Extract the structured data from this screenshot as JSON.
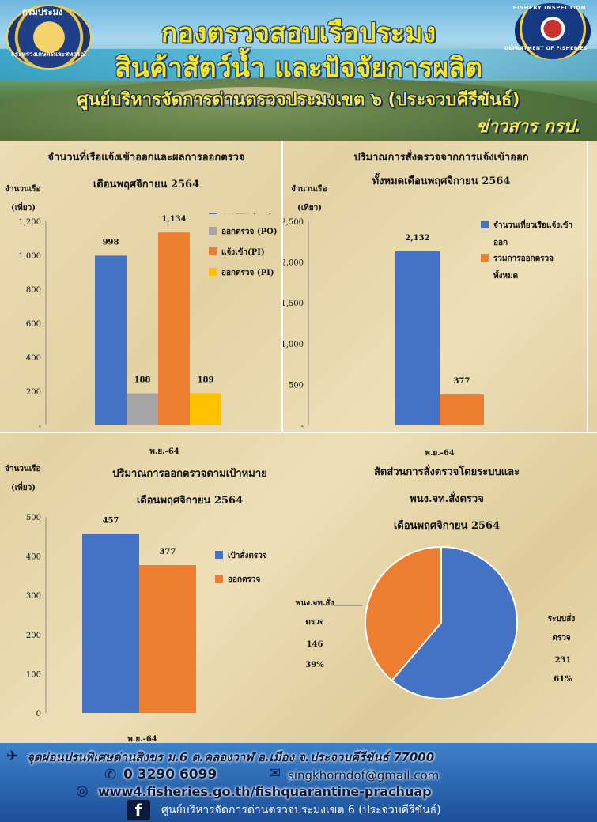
{
  "header": {
    "title_line1": "กองตรวจสอบเรือประมง",
    "title_line2": "สินค้าสัตว์น้ำ และปัจจัยการผลิต",
    "title_line3": "ศูนย์บริหารจัดการด่านตรวจประมงเขต ๖ (ประจวบคีรีขันธ์)",
    "tag": "ข่าวสาร กรป.",
    "logo_left_top": "กรมประมง",
    "logo_left_bottom": "กระทรวงเกษตรและสหกรณ์",
    "logo_right_top": "FISHERY INSPECTION",
    "logo_right_bottom": "DEPARTMENT OF FISHERIES"
  },
  "chart_data": [
    {
      "type": "bar",
      "title_line1": "จำนวนที่เรือแจ้งเข้าออกและผลการออกตรวจ",
      "title_line2": "เดือนพฤศจิกายน 2564",
      "ylabel": "จำนวนเรือ\n(เที่ยว)",
      "ylabel_line1": "จำนวนเรือ",
      "ylabel_line2": "(เที่ยว)",
      "categories": [
        "พ.ย.-64"
      ],
      "ylim": [
        0,
        1200
      ],
      "yticks": [
        "-",
        "200",
        "400",
        "600",
        "800",
        "1,000",
        "1,200"
      ],
      "series": [
        {
          "name": "แจ้งออก (PO)",
          "values": [
            998
          ],
          "label": "998",
          "color": "#4472c4"
        },
        {
          "name": "ออกตรวจ (PO)",
          "values": [
            188
          ],
          "label": "188",
          "color": "#a5a5a5"
        },
        {
          "name": "แจ้งเข้า(PI)",
          "values": [
            1134
          ],
          "label": "1,134",
          "color": "#ed7d31"
        },
        {
          "name": "ออกตรวจ (PI)",
          "values": [
            189
          ],
          "label": "189",
          "color": "#ffc000"
        }
      ],
      "legend": "right"
    },
    {
      "type": "bar",
      "title_line1": "ปริมาณการสั่งตรวจจากการแจ้งเข้าออก",
      "title_line2": "ทั้งหมดเดือนพฤศจิกายน 2564",
      "ylabel_line1": "จำนวนเรือ",
      "ylabel_line2": "(เที่ยว)",
      "categories": [
        "พ.ย.-64"
      ],
      "ylim": [
        0,
        2500
      ],
      "yticks": [
        "-",
        "500",
        "1,000",
        "1,500",
        "2,000",
        "2,500"
      ],
      "series": [
        {
          "name": "จำนวนเที่ยวเรือแจ้งเข้าออก",
          "name_line1": "จำนวนเที่ยวเรือแจ้งเข้า",
          "name_line2": "ออก",
          "values": [
            2132
          ],
          "label": "2,132",
          "color": "#4472c4"
        },
        {
          "name": "รวมการออกตรวจทั้งหมด",
          "name_line1": "รวมการออกตรวจ",
          "name_line2": "ทั้งหมด",
          "values": [
            377
          ],
          "label": "377",
          "color": "#ed7d31"
        }
      ],
      "legend": "right"
    },
    {
      "type": "bar",
      "title_line1": "ปริมาณการออกตรวจตามเป้าหมาย",
      "title_line2": "เดือนพฤศจิกายน 2564",
      "ylabel_line1": "จำนวนเรือ",
      "ylabel_line2": "(เที่ยว)",
      "categories": [
        "พ.ย.-64"
      ],
      "ylim": [
        0,
        500
      ],
      "yticks": [
        "0",
        "100",
        "200",
        "300",
        "400",
        "500"
      ],
      "series": [
        {
          "name": "เป้าสั่งตรวจ",
          "values": [
            457
          ],
          "label": "457",
          "color": "#4472c4"
        },
        {
          "name": "ออกตรวจ",
          "values": [
            377
          ],
          "label": "377",
          "color": "#ed7d31"
        }
      ],
      "legend": "right"
    },
    {
      "type": "pie",
      "title_line1": "สัดส่วนการสั่งตรวจโดยระบบและ",
      "title_line2": "พนง.จท.สั่งตรวจ",
      "title_line3": "เดือนพฤศจิกายน 2564",
      "slices": [
        {
          "name": "ระบบสั่งตรวจ",
          "name_line1": "ระบบสั่ง",
          "name_line2": "ตรวจ",
          "value": 231,
          "value_label": "231",
          "percent": "61%",
          "color": "#4472c4"
        },
        {
          "name": "พนง.จท.สั่งตรวจ",
          "name_line1": "พนง.จท.สั่ง",
          "name_line2": "ตรวจ",
          "value": 146,
          "value_label": "146",
          "percent": "39%",
          "color": "#ed7d31"
        }
      ]
    }
  ],
  "footer": {
    "address": "จุดผ่อนปรนพิเศษด่านสิงขร ม.6 ต.คลองวาฬ อ.เมือง จ.ประจวบคีรีขันธ์ 77000",
    "phone": "0 3290 6099",
    "email": "singkhorndof@gmail.com",
    "website": "www4.fisheries.go.th/fishquarantine-prachuap",
    "facebook": "ศูนย์บริหารจัดการด่านตรวจประมงเขต 6 (ประจวบคีรีขันธ์)"
  }
}
